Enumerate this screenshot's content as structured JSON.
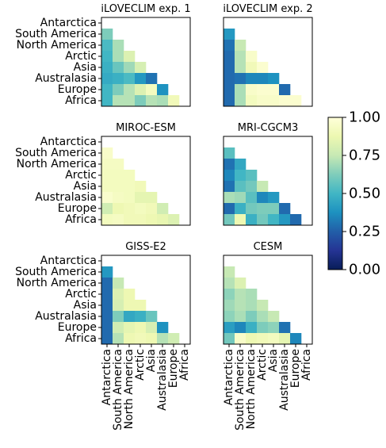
{
  "chart_data": {
    "type": "heatmap",
    "regions": [
      "Antarctica",
      "South America",
      "North America",
      "Arctic",
      "Asia",
      "Australasia",
      "Europe",
      "Africa"
    ],
    "colormap": "YlGnBu_r",
    "colorbar": {
      "min": 0.0,
      "max": 1.0,
      "ticks": [
        "0.00",
        "0.25",
        "0.50",
        "0.75",
        "1.00"
      ]
    },
    "panels": [
      {
        "title": "iLOVECLIM exp. 1",
        "values": [
          [],
          [
            0.62
          ],
          [
            0.52,
            0.7
          ],
          [
            0.5,
            0.7,
            0.82
          ],
          [
            0.48,
            0.58,
            0.68,
            0.8
          ],
          [
            0.46,
            0.48,
            0.52,
            0.4,
            0.3
          ],
          [
            0.5,
            0.62,
            0.72,
            0.82,
            0.92,
            0.38
          ],
          [
            0.5,
            0.72,
            0.72,
            0.62,
            0.72,
            0.7,
            0.9
          ]
        ]
      },
      {
        "title": "iLOVECLIM exp. 2",
        "values": [
          [],
          [
            0.4
          ],
          [
            0.3,
            0.75
          ],
          [
            0.28,
            0.72,
            0.95
          ],
          [
            0.28,
            0.72,
            0.9,
            0.97
          ],
          [
            0.28,
            0.3,
            0.35,
            0.35,
            0.38
          ],
          [
            0.28,
            0.7,
            0.95,
            0.97,
            0.97,
            0.28
          ],
          [
            0.28,
            0.7,
            0.92,
            0.95,
            0.95,
            0.97,
            0.97
          ]
        ]
      },
      {
        "title": "MIROC-ESM",
        "values": [
          [],
          [
            0.95
          ],
          [
            0.93,
            0.93
          ],
          [
            0.92,
            0.92,
            0.92
          ],
          [
            0.92,
            0.92,
            0.92,
            0.9
          ],
          [
            0.96,
            0.93,
            0.92,
            0.85,
            0.85
          ],
          [
            0.78,
            0.88,
            0.9,
            0.92,
            0.9,
            0.78
          ],
          [
            0.92,
            0.93,
            0.9,
            0.9,
            0.88,
            0.86,
            0.82
          ]
        ]
      },
      {
        "title": "MRI-CGCM3",
        "values": [
          [],
          [
            0.55
          ],
          [
            0.3,
            0.45
          ],
          [
            0.35,
            0.5,
            0.55
          ],
          [
            0.3,
            0.55,
            0.6,
            0.75
          ],
          [
            0.7,
            0.68,
            0.55,
            0.35,
            0.4
          ],
          [
            0.28,
            0.48,
            0.6,
            0.62,
            0.62,
            0.28
          ],
          [
            0.6,
            0.88,
            0.48,
            0.6,
            0.5,
            0.4,
            0.28
          ]
        ]
      },
      {
        "title": "GISS-E2",
        "values": [
          [],
          [
            0.4
          ],
          [
            0.28,
            0.75
          ],
          [
            0.28,
            0.82,
            0.88
          ],
          [
            0.28,
            0.8,
            0.88,
            0.88
          ],
          [
            0.28,
            0.62,
            0.45,
            0.48,
            0.58
          ],
          [
            0.28,
            0.78,
            0.85,
            0.88,
            0.8,
            0.38
          ],
          [
            0.28,
            0.72,
            0.88,
            0.9,
            0.88,
            0.72,
            0.78
          ]
        ]
      },
      {
        "title": "CESM",
        "values": [
          [],
          [
            0.75
          ],
          [
            0.72,
            0.82
          ],
          [
            0.65,
            0.72,
            0.7
          ],
          [
            0.68,
            0.72,
            0.7,
            0.75
          ],
          [
            0.65,
            0.7,
            0.62,
            0.7,
            0.75
          ],
          [
            0.42,
            0.35,
            0.48,
            0.62,
            0.65,
            0.3
          ],
          [
            0.6,
            0.95,
            0.88,
            0.9,
            0.92,
            0.85,
            0.35
          ]
        ]
      }
    ]
  }
}
